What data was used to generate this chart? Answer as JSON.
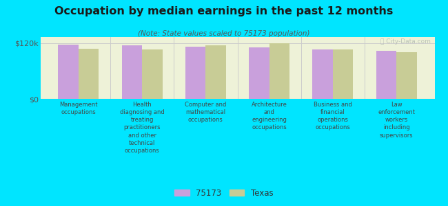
{
  "title": "Occupation by median earnings in the past 12 months",
  "subtitle": "(Note: State values scaled to 75173 population)",
  "categories": [
    "Management\noccupations",
    "Health\ndiagnosing and\ntreating\npractitioners\nand other\ntechnical\noccupations",
    "Computer and\nmathematical\noccupations",
    "Architecture\nand\nengineering\noccupations",
    "Business and\nfinancial\noperations\noccupations",
    "Law\nenforcement\nworkers\nincluding\nsupervisors"
  ],
  "values_75173": [
    117000,
    115000,
    112000,
    111000,
    107000,
    104000
  ],
  "values_texas": [
    108000,
    107000,
    115000,
    120000,
    106000,
    100000
  ],
  "color_75173": "#c9a0dc",
  "color_texas": "#c8cc96",
  "background_color": "#00e5ff",
  "plot_bg_color": "#eef2d8",
  "legend_75173": "75173",
  "legend_texas": "Texas",
  "ylim": [
    0,
    133000
  ],
  "yticks": [
    0,
    120000
  ],
  "ytick_labels": [
    "$0",
    "$120k"
  ],
  "watermark": "Ⓣ City-Data.com"
}
